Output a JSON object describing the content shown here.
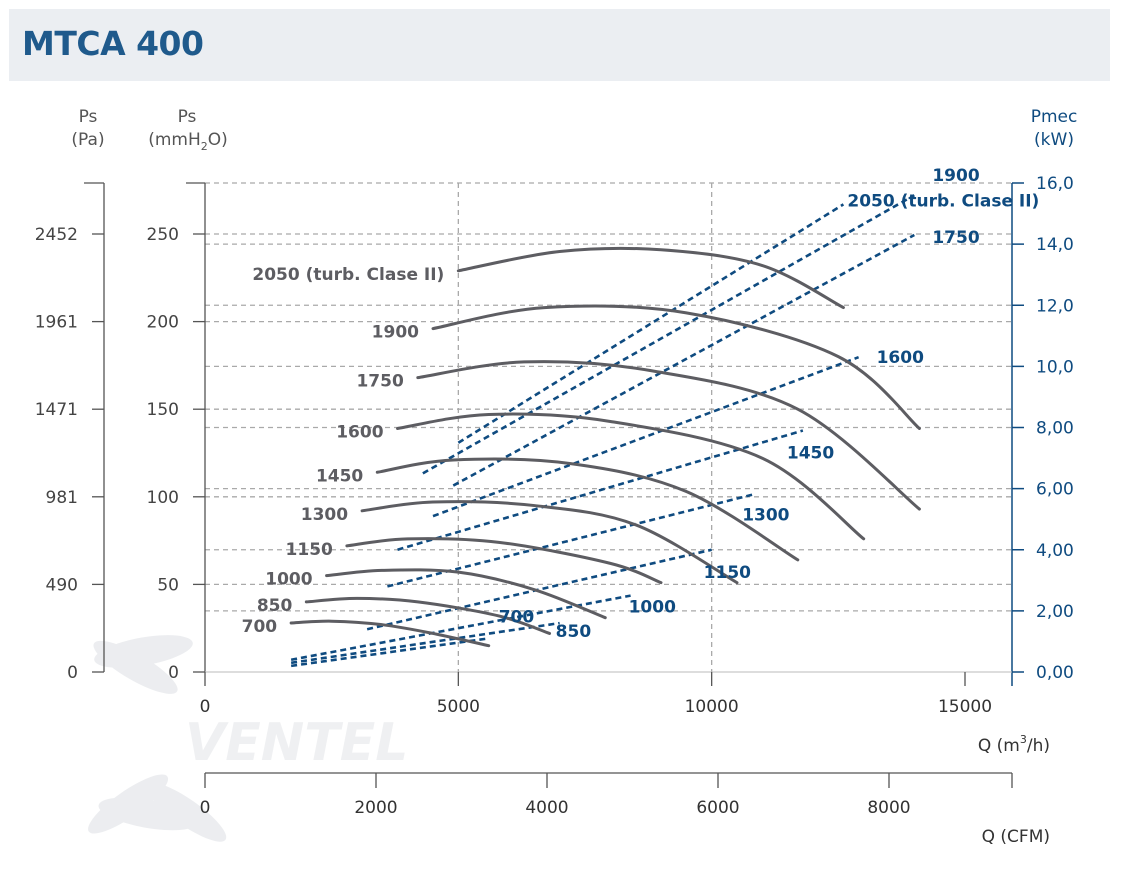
{
  "header": {
    "title": "MTCA 400"
  },
  "axes": {
    "left_pa": {
      "label": "Ps",
      "unit": "(Pa)",
      "ticks": [
        "2452",
        "1961",
        "1471",
        "981",
        "490",
        "0"
      ]
    },
    "left_mm": {
      "label": "Ps",
      "unit_pre": "(mmH",
      "unit_sub": "2",
      "unit_post": "O)",
      "ticks": [
        "250",
        "200",
        "150",
        "100",
        "50",
        "0"
      ]
    },
    "right": {
      "label": "Pmec",
      "unit": "(kW)",
      "ticks": [
        "16,0",
        "14,0",
        "12,0",
        "10,0",
        "8,00",
        "6,00",
        "4,00",
        "2,00",
        "0,00"
      ]
    },
    "x_m3h": {
      "label_pre": "Q (m",
      "label_sup": "3",
      "label_post": "/h)",
      "ticks": [
        "0",
        "5000",
        "10000",
        "15000"
      ]
    },
    "x_cfm": {
      "label": "Q (CFM)",
      "ticks": [
        "0",
        "2000",
        "4000",
        "6000",
        "8000"
      ]
    }
  },
  "watermark": {
    "text": "VENTEL"
  },
  "colors": {
    "title": "#1f5a8c",
    "pressure_curve": "#5d5d62",
    "power_curve": "#0f4b80",
    "axis_right": "#0f4b80"
  },
  "chart_data": {
    "type": "line",
    "title": "MTCA 400",
    "x_axis": {
      "label": "Q (m3/h)",
      "range": [
        0,
        16000
      ],
      "secondary_label": "Q (CFM)",
      "secondary_range": [
        0,
        9400
      ]
    },
    "y_left": {
      "label": "Ps (mmH2O)",
      "range": [
        0,
        250
      ],
      "secondary_label": "Ps (Pa)"
    },
    "y_right": {
      "label": "Pmec (kW)",
      "range": [
        0,
        16
      ]
    },
    "grid": "dashed",
    "pressure_curves": [
      {
        "name": "700",
        "points": [
          [
            1700,
            28
          ],
          [
            2500,
            29
          ],
          [
            3500,
            27
          ],
          [
            4500,
            22
          ],
          [
            5600,
            15
          ]
        ]
      },
      {
        "name": "850",
        "points": [
          [
            2000,
            40
          ],
          [
            3000,
            42
          ],
          [
            4200,
            40
          ],
          [
            5800,
            32
          ],
          [
            6800,
            22
          ]
        ]
      },
      {
        "name": "1000",
        "points": [
          [
            2400,
            55
          ],
          [
            3500,
            58
          ],
          [
            5000,
            57
          ],
          [
            6500,
            47
          ],
          [
            7900,
            31
          ]
        ]
      },
      {
        "name": "1150",
        "points": [
          [
            2800,
            72
          ],
          [
            4000,
            76
          ],
          [
            5800,
            74
          ],
          [
            8000,
            62
          ],
          [
            9000,
            51
          ]
        ]
      },
      {
        "name": "1300",
        "points": [
          [
            3100,
            92
          ],
          [
            4500,
            97
          ],
          [
            6500,
            95
          ],
          [
            8500,
            84
          ],
          [
            10500,
            51
          ]
        ]
      },
      {
        "name": "1450",
        "points": [
          [
            3400,
            114
          ],
          [
            4900,
            121
          ],
          [
            7200,
            119
          ],
          [
            9500,
            103
          ],
          [
            11700,
            64
          ]
        ]
      },
      {
        "name": "1600",
        "points": [
          [
            3800,
            139
          ],
          [
            5600,
            147
          ],
          [
            8000,
            143
          ],
          [
            11000,
            122
          ],
          [
            13000,
            76
          ]
        ]
      },
      {
        "name": "1750",
        "points": [
          [
            4200,
            168
          ],
          [
            6300,
            177
          ],
          [
            8800,
            172
          ],
          [
            11700,
            150
          ],
          [
            14100,
            93
          ]
        ]
      },
      {
        "name": "1900",
        "points": [
          [
            4500,
            196
          ],
          [
            6700,
            208
          ],
          [
            9500,
            205
          ],
          [
            12500,
            180
          ],
          [
            14100,
            139
          ]
        ]
      },
      {
        "name": "2050 (turb. Clase II)",
        "points": [
          [
            5000,
            229
          ],
          [
            7000,
            240
          ],
          [
            9000,
            241
          ],
          [
            11000,
            232
          ],
          [
            12600,
            208
          ]
        ]
      }
    ],
    "power_curves": [
      {
        "name": "700",
        "points": [
          [
            1700,
            0.2
          ],
          [
            5600,
            1.1
          ]
        ]
      },
      {
        "name": "850",
        "points": [
          [
            1700,
            0.3
          ],
          [
            7000,
            1.6
          ]
        ]
      },
      {
        "name": "1000",
        "points": [
          [
            1700,
            0.4
          ],
          [
            8400,
            2.5
          ]
        ]
      },
      {
        "name": "1150",
        "points": [
          [
            3200,
            1.4
          ],
          [
            10000,
            4.0
          ]
        ]
      },
      {
        "name": "1300",
        "points": [
          [
            3600,
            2.8
          ],
          [
            10800,
            5.8
          ]
        ]
      },
      {
        "name": "1450",
        "points": [
          [
            3800,
            4.0
          ],
          [
            11800,
            7.9
          ]
        ]
      },
      {
        "name": "1600",
        "points": [
          [
            4500,
            5.1
          ],
          [
            12900,
            10.3
          ]
        ]
      },
      {
        "name": "1750",
        "points": [
          [
            4900,
            6.1
          ],
          [
            14000,
            14.3
          ]
        ]
      },
      {
        "name": "1900",
        "points": [
          [
            4300,
            6.5
          ],
          [
            14000,
            15.6
          ]
        ]
      },
      {
        "name": "2050 (turb. Clase II)",
        "points": [
          [
            5000,
            7.5
          ],
          [
            12600,
            15.3
          ]
        ]
      }
    ]
  }
}
